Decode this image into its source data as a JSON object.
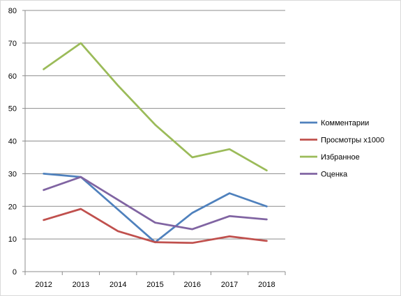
{
  "chart_data": {
    "type": "line",
    "title": "",
    "xlabel": "",
    "ylabel": "",
    "categories": [
      "2012",
      "2013",
      "2014",
      "2015",
      "2016",
      "2017",
      "2018"
    ],
    "ylim": [
      0,
      80
    ],
    "yticks": [
      "0",
      "10",
      "20",
      "30",
      "40",
      "50",
      "60",
      "70",
      "80"
    ],
    "grid": true,
    "legend_position": "right",
    "series": [
      {
        "name": "Комментарии",
        "color": "#4F81BD",
        "values": [
          30,
          29,
          19,
          9,
          18,
          24,
          20
        ]
      },
      {
        "name": "Просмотры х1000",
        "color": "#C0504D",
        "values": [
          15.8,
          19.2,
          12.4,
          9,
          8.8,
          10.8,
          9.4
        ]
      },
      {
        "name": "Избранное",
        "color": "#9BBB59",
        "values": [
          62,
          70,
          57,
          45,
          35,
          37.5,
          31
        ]
      },
      {
        "name": "Оценка",
        "color": "#8064A2",
        "values": [
          25,
          29,
          22,
          15,
          13,
          17,
          16
        ]
      }
    ]
  }
}
